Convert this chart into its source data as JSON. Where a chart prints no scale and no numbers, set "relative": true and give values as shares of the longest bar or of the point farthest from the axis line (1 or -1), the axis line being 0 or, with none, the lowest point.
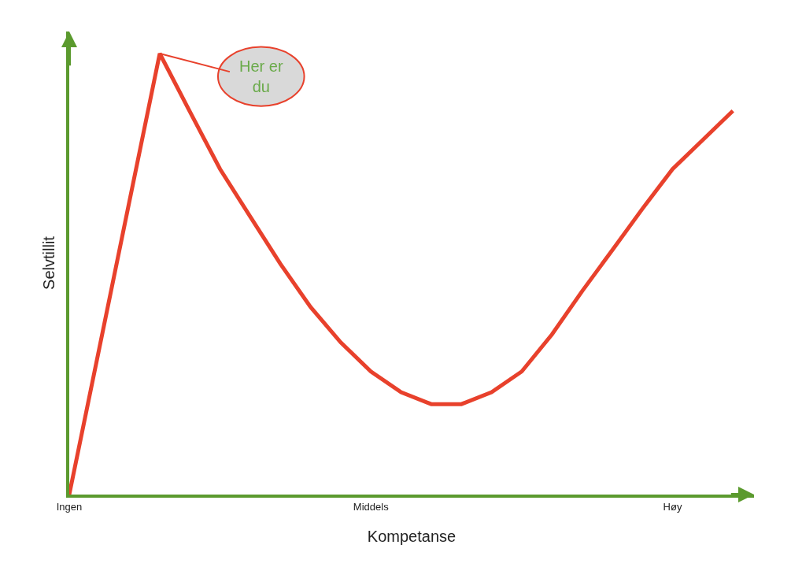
{
  "chart_data": {
    "type": "line",
    "relative": true,
    "xlabel": "Kompetanse",
    "ylabel": "Selvtillit",
    "categories": [
      "Ingen",
      null,
      null,
      null,
      null,
      null,
      null,
      null,
      null,
      null,
      "Middels",
      null,
      null,
      null,
      null,
      null,
      null,
      null,
      null,
      null,
      "Høy",
      null,
      null
    ],
    "series": [
      {
        "color": "#e8412c",
        "values": [
          0,
          0.333,
          0.667,
          1,
          0.868,
          0.738,
          0.63,
          0.523,
          0.425,
          0.345,
          0.279,
          0.232,
          0.205,
          0.205,
          0.232,
          0.279,
          0.363,
          0.461,
          0.554,
          0.648,
          0.738,
          0.804,
          0.87
        ]
      }
    ],
    "annotations": [
      "Her er\ndu"
    ],
    "legend": false,
    "marker": "none",
    "line_style": "solid",
    "tick_labels": "x"
  }
}
